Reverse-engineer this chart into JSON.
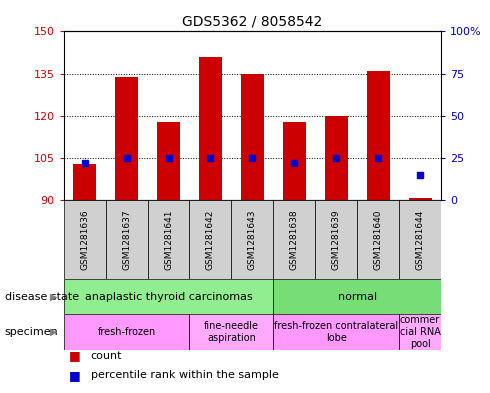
{
  "title": "GDS5362 / 8058542",
  "samples": [
    "GSM1281636",
    "GSM1281637",
    "GSM1281641",
    "GSM1281642",
    "GSM1281643",
    "GSM1281638",
    "GSM1281639",
    "GSM1281640",
    "GSM1281644"
  ],
  "counts": [
    103,
    134,
    118,
    141,
    135,
    118,
    120,
    136,
    91
  ],
  "percentile_ranks": [
    22,
    25,
    25,
    25,
    25,
    22,
    25,
    25,
    15
  ],
  "y_min": 90,
  "y_max": 150,
  "y_ticks": [
    90,
    105,
    120,
    135,
    150
  ],
  "right_y_ticks": [
    0,
    25,
    50,
    75,
    100
  ],
  "bar_color": "#cc0000",
  "dot_color": "#0000cc",
  "disease_states": [
    {
      "label": "anaplastic thyroid carcinomas",
      "start": 0,
      "end": 5,
      "color": "#90EE90"
    },
    {
      "label": "normal",
      "start": 5,
      "end": 9,
      "color": "#77DD77"
    }
  ],
  "specimens": [
    {
      "label": "fresh-frozen",
      "start": 0,
      "end": 3,
      "color": "#FF99FF"
    },
    {
      "label": "fine-needle\naspiration",
      "start": 3,
      "end": 5,
      "color": "#FFAAFF"
    },
    {
      "label": "fresh-frozen contralateral\nlobe",
      "start": 5,
      "end": 8,
      "color": "#FF99FF"
    },
    {
      "label": "commer\ncial RNA\npool",
      "start": 8,
      "end": 9,
      "color": "#FFAAFF"
    }
  ],
  "tick_label_color_left": "#cc0000",
  "tick_label_color_right": "#0000cc",
  "plot_bg": "#ffffff",
  "label_area_bg": "#d0d0d0"
}
